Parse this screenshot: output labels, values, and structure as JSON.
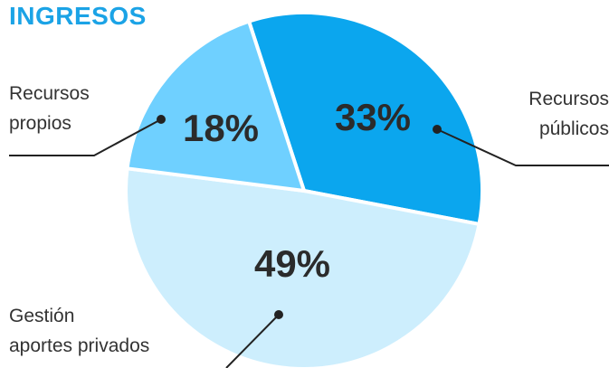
{
  "chart_data": {
    "type": "pie",
    "title": "INGRESOS",
    "categories": [
      "Recursos\npúblicos",
      "Gestión\naportes privados",
      "Recursos\npropios"
    ],
    "values": [
      33,
      49,
      18
    ],
    "value_labels": [
      "33%",
      "49%",
      "18%"
    ],
    "colors": [
      "#0ba6ee",
      "#cdeefd",
      "#6fd0ff"
    ]
  }
}
